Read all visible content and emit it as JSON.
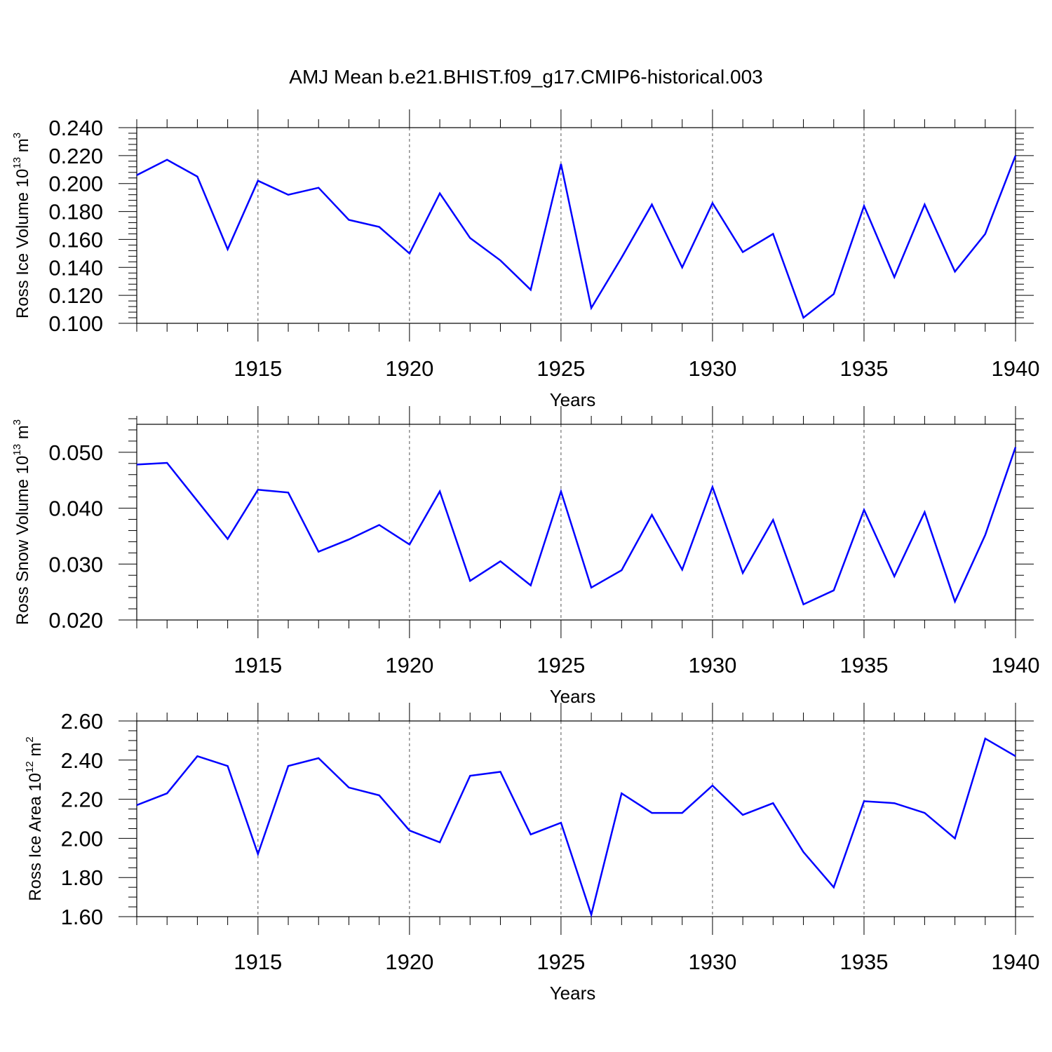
{
  "chart_data": {
    "title": "AMJ Mean b.e21.BHIST.f09_g17.CMIP6-historical.003",
    "line_color": "#0000ff",
    "panels": [
      {
        "type": "line",
        "name": "ice-volume",
        "ylabel": "Ross Ice Volume 10",
        "ylabel_exp": "13",
        "ylabel_unit": " m",
        "ylabel_unit_exp": "3",
        "xlabel": "Years",
        "xlim": [
          1911,
          1940
        ],
        "ylim": [
          0.1,
          0.24
        ],
        "yticks": [
          0.1,
          0.12,
          0.14,
          0.16,
          0.18,
          0.2,
          0.22,
          0.24
        ],
        "ytick_labels": [
          "0.100",
          "0.120",
          "0.140",
          "0.160",
          "0.180",
          "0.200",
          "0.220",
          "0.240"
        ],
        "xticks": [
          1915,
          1920,
          1925,
          1930,
          1935,
          1940
        ],
        "xtick_labels": [
          "1915",
          "1920",
          "1925",
          "1930",
          "1935",
          "1940"
        ],
        "x": [
          1911,
          1912,
          1913,
          1914,
          1915,
          1916,
          1917,
          1918,
          1919,
          1920,
          1921,
          1922,
          1923,
          1924,
          1925,
          1926,
          1927,
          1928,
          1929,
          1930,
          1931,
          1932,
          1933,
          1934,
          1935,
          1936,
          1937,
          1938,
          1939,
          1940
        ],
        "values": [
          0.206,
          0.217,
          0.205,
          0.153,
          0.202,
          0.192,
          0.197,
          0.174,
          0.169,
          0.15,
          0.193,
          0.161,
          0.145,
          0.124,
          0.214,
          0.111,
          0.147,
          0.185,
          0.14,
          0.186,
          0.151,
          0.164,
          0.104,
          0.121,
          0.184,
          0.133,
          0.185,
          0.137,
          0.164,
          0.22
        ]
      },
      {
        "type": "line",
        "name": "snow-volume",
        "ylabel": "Ross Snow Volume 10",
        "ylabel_exp": "13",
        "ylabel_unit": " m",
        "ylabel_unit_exp": "3",
        "xlabel": "Years",
        "xlim": [
          1911,
          1940
        ],
        "ylim": [
          0.02,
          0.055
        ],
        "yticks": [
          0.02,
          0.03,
          0.04,
          0.05
        ],
        "ytick_labels": [
          "0.020",
          "0.030",
          "0.040",
          "0.050"
        ],
        "xticks": [
          1915,
          1920,
          1925,
          1930,
          1935,
          1940
        ],
        "xtick_labels": [
          "1915",
          "1920",
          "1925",
          "1930",
          "1935",
          "1940"
        ],
        "x": [
          1911,
          1912,
          1913,
          1914,
          1915,
          1916,
          1917,
          1918,
          1919,
          1920,
          1921,
          1922,
          1923,
          1924,
          1925,
          1926,
          1927,
          1928,
          1929,
          1930,
          1931,
          1932,
          1933,
          1934,
          1935,
          1936,
          1937,
          1938,
          1939,
          1940
        ],
        "values": [
          0.0478,
          0.0481,
          0.0413,
          0.0345,
          0.0433,
          0.0428,
          0.0322,
          0.0344,
          0.037,
          0.0335,
          0.043,
          0.027,
          0.0305,
          0.0262,
          0.043,
          0.0258,
          0.0289,
          0.0388,
          0.029,
          0.0438,
          0.0284,
          0.0379,
          0.0228,
          0.0253,
          0.0397,
          0.0278,
          0.0393,
          0.0233,
          0.0352,
          0.0509
        ]
      },
      {
        "type": "line",
        "name": "ice-area",
        "ylabel": "Ross Ice Area 10",
        "ylabel_exp": "12",
        "ylabel_unit": " m",
        "ylabel_unit_exp": "2",
        "xlabel": "Years",
        "xlim": [
          1911,
          1940
        ],
        "ylim": [
          1.6,
          2.6
        ],
        "yticks": [
          1.6,
          1.8,
          2.0,
          2.2,
          2.4,
          2.6
        ],
        "ytick_labels": [
          "1.60",
          "1.80",
          "2.00",
          "2.20",
          "2.40",
          "2.60"
        ],
        "xticks": [
          1915,
          1920,
          1925,
          1930,
          1935,
          1940
        ],
        "xtick_labels": [
          "1915",
          "1920",
          "1925",
          "1930",
          "1935",
          "1940"
        ],
        "x": [
          1911,
          1912,
          1913,
          1914,
          1915,
          1916,
          1917,
          1918,
          1919,
          1920,
          1921,
          1922,
          1923,
          1924,
          1925,
          1926,
          1927,
          1928,
          1929,
          1930,
          1931,
          1932,
          1933,
          1934,
          1935,
          1936,
          1937,
          1938,
          1939,
          1940
        ],
        "values": [
          2.17,
          2.23,
          2.42,
          2.37,
          1.92,
          2.37,
          2.41,
          2.26,
          2.22,
          2.04,
          1.98,
          2.32,
          2.34,
          2.02,
          2.08,
          1.61,
          2.23,
          2.13,
          2.13,
          2.27,
          2.12,
          2.18,
          1.93,
          1.75,
          2.19,
          2.18,
          2.13,
          2.0,
          2.51,
          2.42
        ]
      }
    ]
  }
}
